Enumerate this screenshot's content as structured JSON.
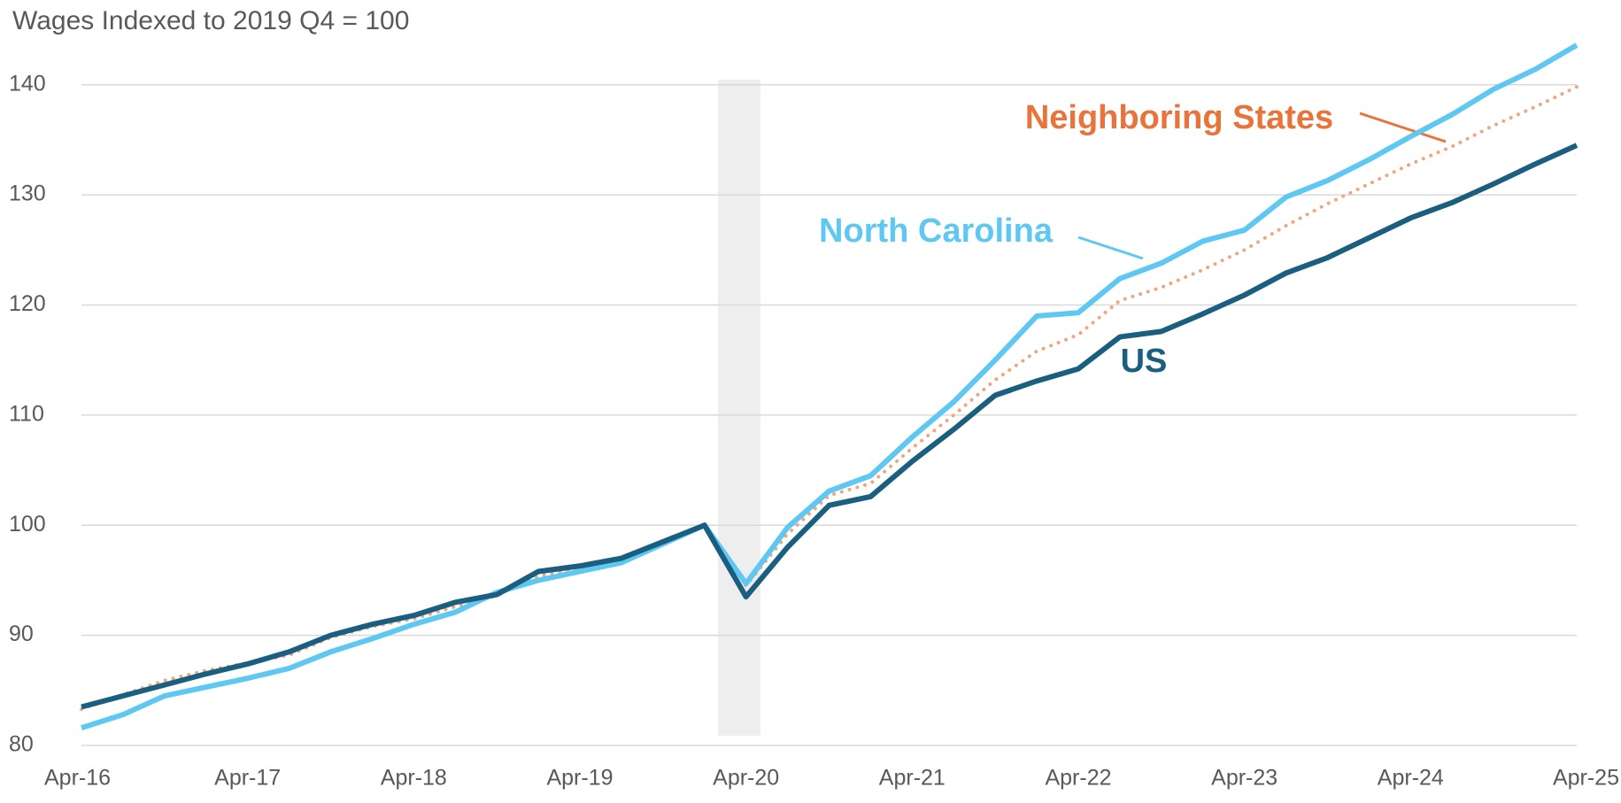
{
  "chart_data": {
    "type": "line",
    "title": "Wages Indexed to 2019 Q4 = 100",
    "categories": [
      "Apr-16",
      null,
      null,
      null,
      "Apr-17",
      null,
      null,
      null,
      "Apr-18",
      null,
      null,
      null,
      "Apr-19",
      null,
      null,
      null,
      "Apr-20",
      null,
      null,
      null,
      "Apr-21",
      null,
      null,
      null,
      "Apr-22",
      null,
      null,
      null,
      "Apr-23",
      null,
      null,
      null,
      "Apr-24",
      null,
      null,
      null,
      "Apr-25"
    ],
    "series": [
      {
        "name": "US",
        "color": "#1a5e80",
        "values": [
          83.5,
          84.5,
          85.5,
          86.5,
          87.4,
          88.5,
          90.0,
          91.0,
          91.8,
          93.0,
          93.7,
          95.8,
          96.3,
          97.0,
          98.5,
          100,
          93.5,
          98.0,
          101.8,
          102.6,
          105.8,
          108.7,
          111.8,
          113.1,
          114.2,
          117.1,
          117.6,
          119.2,
          120.9,
          122.9,
          124.3,
          126.1,
          127.9,
          129.3,
          131.0,
          132.8,
          134.5
        ]
      },
      {
        "name": "North Carolina",
        "color": "#5ec8f2",
        "values": [
          81.6,
          82.8,
          84.5,
          85.3,
          86.1,
          87.0,
          88.5,
          89.7,
          91.0,
          92.1,
          93.9,
          95.0,
          95.8,
          96.6,
          98.3,
          100,
          94.7,
          99.8,
          103.1,
          104.5,
          108.0,
          111.2,
          115.0,
          119.0,
          119.3,
          122.4,
          123.8,
          125.8,
          126.8,
          129.8,
          131.3,
          133.2,
          135.3,
          137.3,
          139.6,
          141.4,
          143.6
        ]
      },
      {
        "name": "Neighboring States",
        "color": "#f0a77f",
        "line_style": "dotted",
        "values": [
          83.3,
          84.6,
          85.9,
          86.8,
          87.5,
          88.2,
          89.8,
          90.8,
          91.5,
          92.6,
          93.6,
          95.4,
          96.0,
          96.8,
          98.4,
          100,
          94.5,
          99.2,
          102.7,
          103.8,
          107.0,
          110.0,
          113.2,
          115.8,
          117.3,
          120.4,
          121.6,
          123.2,
          125.0,
          127.2,
          129.2,
          131.0,
          132.8,
          134.4,
          136.3,
          138.0,
          139.8
        ]
      }
    ],
    "ylim": [
      80,
      144
    ],
    "yticks": [
      80,
      90,
      100,
      110,
      120,
      130,
      140
    ],
    "grid": true
  }
}
